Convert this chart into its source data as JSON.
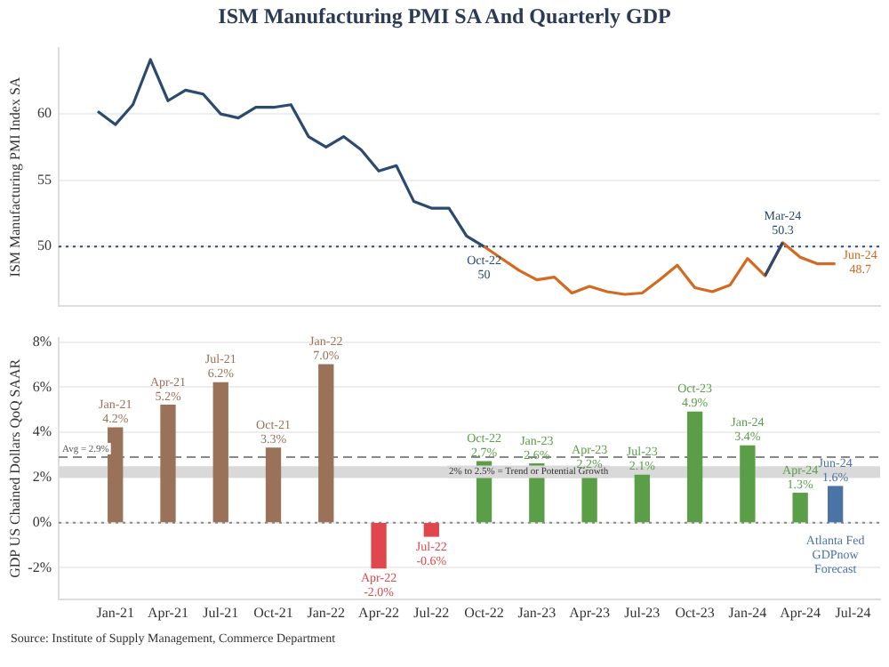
{
  "chart_data": [
    {
      "type": "line",
      "title": "ISM Manufacturing PMI SA And Quarterly GDP",
      "ylabel": "ISM Manufacturing PMI Index SA",
      "x": [
        "2020-12",
        "2021-01",
        "2021-02",
        "2021-03",
        "2021-04",
        "2021-05",
        "2021-06",
        "2021-07",
        "2021-08",
        "2021-09",
        "2021-10",
        "2021-11",
        "2021-12",
        "2022-01",
        "2022-02",
        "2022-03",
        "2022-04",
        "2022-05",
        "2022-06",
        "2022-07",
        "2022-08",
        "2022-09",
        "2022-10",
        "2022-11",
        "2022-12",
        "2023-01",
        "2023-02",
        "2023-03",
        "2023-04",
        "2023-05",
        "2023-06",
        "2023-07",
        "2023-08",
        "2023-09",
        "2023-10",
        "2023-11",
        "2023-12",
        "2024-01",
        "2024-02",
        "2024-03",
        "2024-04",
        "2024-05",
        "2024-06"
      ],
      "series": [
        {
          "color": "#2b4a6f",
          "values": [
            60.2,
            59.2,
            60.7,
            64.1,
            61.0,
            61.8,
            61.5,
            60.0,
            59.7,
            60.5,
            60.5,
            60.7,
            58.3,
            57.5,
            58.3,
            57.3,
            55.7,
            56.1,
            53.4,
            52.9,
            52.9,
            50.8,
            50.0,
            null,
            null,
            null,
            null,
            null,
            null,
            null,
            null,
            null,
            null,
            null,
            null,
            null,
            null,
            null,
            47.8,
            50.3,
            null,
            null,
            null
          ]
        },
        {
          "color": "#d4691f",
          "values": [
            null,
            null,
            null,
            null,
            null,
            null,
            null,
            null,
            null,
            null,
            null,
            null,
            null,
            null,
            null,
            null,
            null,
            null,
            null,
            null,
            null,
            null,
            50.0,
            49.1,
            48.2,
            47.5,
            47.7,
            46.5,
            47.0,
            46.6,
            46.4,
            46.5,
            47.5,
            48.6,
            46.9,
            46.6,
            47.1,
            49.1,
            47.8,
            50.3,
            49.2,
            48.7,
            48.7
          ]
        }
      ],
      "xlim": [
        "2020-09-25",
        "2024-08-18"
      ],
      "ylim": [
        45.5,
        65
      ],
      "yticks": [
        50,
        55,
        60
      ],
      "grid": "y",
      "tick_labels": "y",
      "legend": false,
      "ref_lines": [
        {
          "axis": "y",
          "value": 50,
          "line_style": "dotted",
          "color": "#2b4a6f"
        }
      ],
      "annotations": [
        {
          "text": "Oct-22\n50",
          "x": "2022-10",
          "y": 50.0
        },
        {
          "text": "Mar-24\n50.3",
          "x": "2024-03",
          "y": 50.3
        },
        {
          "text": "Jun-24\n48.7",
          "x": "2024-06",
          "y": 48.7
        }
      ]
    },
    {
      "type": "bar",
      "ylabel": "GDP US Chained Dollars QoQ SAAR",
      "x": [
        "2021-01",
        "2021-04",
        "2021-07",
        "2021-10",
        "2022-01",
        "2022-04",
        "2022-07",
        "2022-10",
        "2023-01",
        "2023-04",
        "2023-07",
        "2023-10",
        "2024-01",
        "2024-04",
        "2024-06"
      ],
      "values": [
        4.2,
        5.2,
        6.2,
        3.3,
        7.0,
        -2.0,
        -0.6,
        2.7,
        2.6,
        2.2,
        2.1,
        4.9,
        3.4,
        1.3,
        1.6
      ],
      "colors": [
        "#9a7259",
        "#9a7259",
        "#9a7259",
        "#9a7259",
        "#9a7259",
        "#e0474c",
        "#e0474c",
        "#5a9e48",
        "#5a9e48",
        "#5a9e48",
        "#5a9e48",
        "#5a9e48",
        "#5a9e48",
        "#5a9e48",
        "#4a73a6"
      ],
      "value_labels": [
        "Jan-21\n4.2%",
        "Apr-21\n5.2%",
        "Jul-21\n6.2%",
        "Oct-21\n3.3%",
        "Jan-22\n7.0%",
        "Apr-22\n-2.0%",
        "Jul-22\n-0.6%",
        "Oct-22\n2.7%",
        "Jan-23\n2.6%",
        "Apr-23\n2.2%",
        "Jul-23\n2.1%",
        "Oct-23\n4.9%",
        "Jan-24\n3.4%",
        "Apr-24\n1.3%",
        "Jun-24\n1.6%"
      ],
      "xlim": [
        "2020-09-25",
        "2024-08-18"
      ],
      "xticks": [
        {
          "value": "2021-01",
          "label": "Jan-21"
        },
        {
          "value": "2021-04",
          "label": "Apr-21"
        },
        {
          "value": "2021-07",
          "label": "Jul-21"
        },
        {
          "value": "2021-10",
          "label": "Oct-21"
        },
        {
          "value": "2022-01",
          "label": "Jan-22"
        },
        {
          "value": "2022-04",
          "label": "Apr-22"
        },
        {
          "value": "2022-07",
          "label": "Jul-22"
        },
        {
          "value": "2022-10",
          "label": "Oct-22"
        },
        {
          "value": "2023-01",
          "label": "Jan-23"
        },
        {
          "value": "2023-04",
          "label": "Apr-23"
        },
        {
          "value": "2023-07",
          "label": "Jul-23"
        },
        {
          "value": "2023-10",
          "label": "Oct-23"
        },
        {
          "value": "2024-01",
          "label": "Jan-24"
        },
        {
          "value": "2024-04",
          "label": "Apr-24"
        },
        {
          "value": "2024-07",
          "label": "Jul-24"
        }
      ],
      "ylim": [
        -3.4,
        8.2
      ],
      "yticks": [
        {
          "value": -2,
          "label": "-2%"
        },
        {
          "value": 0,
          "label": "0%"
        },
        {
          "value": 2,
          "label": "2%"
        },
        {
          "value": 4,
          "label": "4%"
        },
        {
          "value": 6,
          "label": "6%"
        },
        {
          "value": 8,
          "label": "8%"
        }
      ],
      "grid": "y",
      "legend": false,
      "ref_lines": [
        {
          "axis": "y",
          "value": 2.9,
          "label": "Avg = 2.9%",
          "line_style": "dashed",
          "color": "#888888"
        },
        {
          "axis": "y",
          "value": 0,
          "line_style": "dotted",
          "color": "#888888"
        }
      ],
      "bands": [
        {
          "axis": "y",
          "from": 2,
          "to": 2.5,
          "label": "2% to 2.5% = Trend or Potential Growth",
          "color": "#d9d9d9"
        }
      ],
      "annotations": [
        "Atlanta Fed\nGDPnow\nForecast",
        "Source: Institute of Supply Management, Commerce Department"
      ]
    }
  ]
}
